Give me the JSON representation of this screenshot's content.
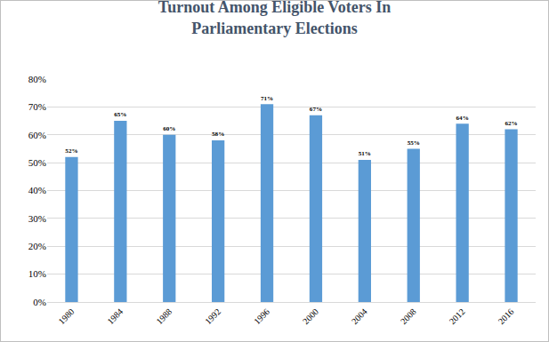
{
  "chart_data": {
    "type": "bar",
    "title": "Turnout Among Eligible Voters In Parliamentary Elections",
    "categories": [
      "1980",
      "1984",
      "1988",
      "1992",
      "1996",
      "2000",
      "2004",
      "2008",
      "2012",
      "2016"
    ],
    "values": [
      52,
      65,
      60,
      58,
      71,
      67,
      51,
      55,
      64,
      62
    ],
    "value_labels": [
      "52%",
      "65%",
      "60%",
      "58%",
      "71%",
      "67%",
      "51%",
      "55%",
      "64%",
      "62%"
    ],
    "data_labels": true,
    "color": "#5b9bd5",
    "ylim": [
      0,
      80
    ],
    "yticks": [
      {
        "value": 0,
        "label": "0%"
      },
      {
        "value": 10,
        "label": "10%"
      },
      {
        "value": 20,
        "label": "20%"
      },
      {
        "value": 30,
        "label": "30%"
      },
      {
        "value": 40,
        "label": "40%"
      },
      {
        "value": 50,
        "label": "50%"
      },
      {
        "value": 60,
        "label": "60%"
      },
      {
        "value": 70,
        "label": "70%"
      },
      {
        "value": 80,
        "label": "80%"
      }
    ],
    "grid": true
  }
}
